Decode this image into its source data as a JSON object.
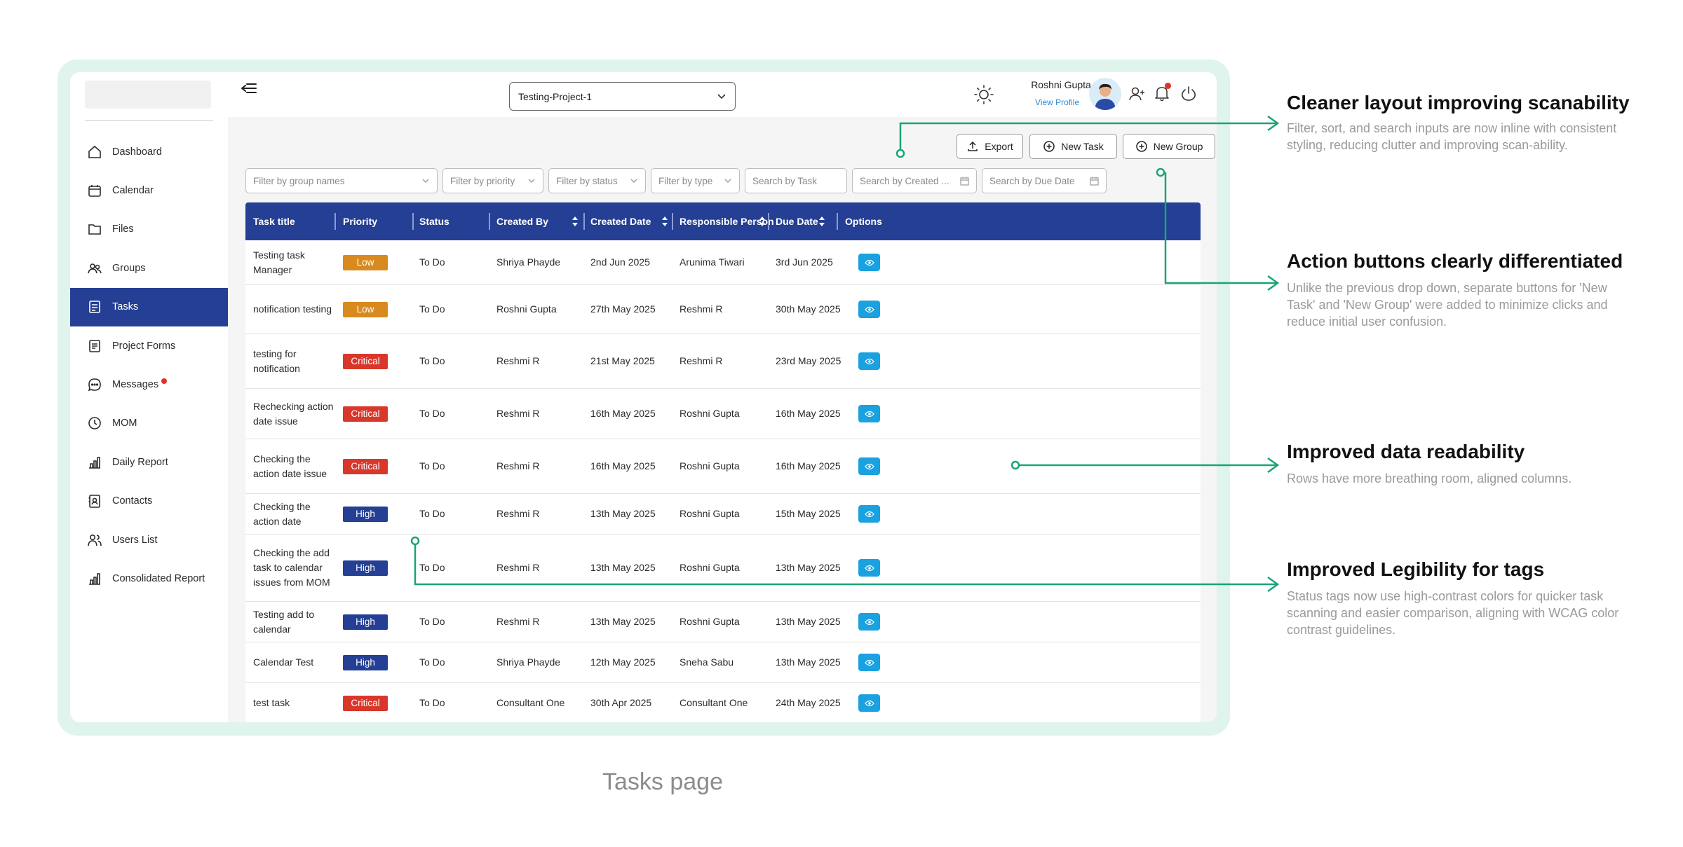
{
  "app": {
    "project": "Testing-Project-1",
    "user": {
      "name": "Roshni Gupta",
      "link": "View Profile"
    }
  },
  "sidebar": {
    "items": [
      {
        "label": "Dashboard",
        "icon": "home-icon"
      },
      {
        "label": "Calendar",
        "icon": "calendar-icon"
      },
      {
        "label": "Files",
        "icon": "folder-icon"
      },
      {
        "label": "Groups",
        "icon": "groups-icon"
      },
      {
        "label": "Tasks",
        "icon": "tasks-icon",
        "active": true
      },
      {
        "label": "Project Forms",
        "icon": "form-icon"
      },
      {
        "label": "Messages",
        "icon": "chat-icon",
        "badge": true
      },
      {
        "label": "MOM",
        "icon": "clock-icon"
      },
      {
        "label": "Daily Report",
        "icon": "bar-chart-icon"
      },
      {
        "label": "Contacts",
        "icon": "contacts-icon"
      },
      {
        "label": "Users List",
        "icon": "users-icon"
      },
      {
        "label": "Consolidated Report",
        "icon": "bar-chart-icon"
      }
    ]
  },
  "toolbar": {
    "export": "Export",
    "new_task": "New Task",
    "new_group": "New Group"
  },
  "filters": {
    "group": "Filter by group names",
    "priority": "Filter by priority",
    "status": "Filter by status",
    "type": "Filter by type",
    "task": "Search by Task",
    "created": "Search by Created ...",
    "due": "Search by Due Date"
  },
  "table": {
    "headers": [
      "Task title",
      "Priority",
      "Status",
      "Created By",
      "Created Date",
      "Responsible Person",
      "Due Date",
      "Options"
    ],
    "rows": [
      {
        "title": "Testing task Manager",
        "priority": "Low",
        "status": "To Do",
        "created_by": "Shriya Phayde",
        "created": "2nd Jun 2025",
        "responsible": "Arunima Tiwari",
        "due": "3rd Jun 2025"
      },
      {
        "title": "notification testing",
        "priority": "Low",
        "status": "To Do",
        "created_by": "Roshni Gupta",
        "created": "27th May 2025",
        "responsible": "Reshmi R",
        "due": "30th May 2025"
      },
      {
        "title": "testing for notification",
        "priority": "Critical",
        "status": "To Do",
        "created_by": "Reshmi R",
        "created": "21st May 2025",
        "responsible": "Reshmi R",
        "due": "23rd May 2025"
      },
      {
        "title": "Rechecking action date issue",
        "priority": "Critical",
        "status": "To Do",
        "created_by": "Reshmi R",
        "created": "16th May 2025",
        "responsible": "Roshni Gupta",
        "due": "16th May 2025"
      },
      {
        "title": "Checking the action date issue",
        "priority": "Critical",
        "status": "To Do",
        "created_by": "Reshmi R",
        "created": "16th May 2025",
        "responsible": "Roshni Gupta",
        "due": "16th May 2025"
      },
      {
        "title": "Checking the action date",
        "priority": "High",
        "status": "To Do",
        "created_by": "Reshmi R",
        "created": "13th May 2025",
        "responsible": "Roshni Gupta",
        "due": "15th May 2025"
      },
      {
        "title": "Checking the add task to calendar issues from MOM",
        "priority": "High",
        "status": "To Do",
        "created_by": "Reshmi R",
        "created": "13th May 2025",
        "responsible": "Roshni Gupta",
        "due": "13th May 2025"
      },
      {
        "title": "Testing add to calendar",
        "priority": "High",
        "status": "To Do",
        "created_by": "Reshmi R",
        "created": "13th May 2025",
        "responsible": "Roshni Gupta",
        "due": "13th May 2025"
      },
      {
        "title": "Calendar Test",
        "priority": "High",
        "status": "To Do",
        "created_by": "Shriya Phayde",
        "created": "12th May 2025",
        "responsible": "Sneha Sabu",
        "due": "13th May 2025"
      },
      {
        "title": "test task",
        "priority": "Critical",
        "status": "To Do",
        "created_by": "Consultant One",
        "created": "30th Apr 2025",
        "responsible": "Consultant One",
        "due": "24th May 2025"
      }
    ]
  },
  "colors": {
    "primary": "#243f93",
    "low": "#d98a1f",
    "critical": "#d9372a",
    "high": "#243f93",
    "eye": "#1aa1e0",
    "annotation": "#1aa37a"
  },
  "annotations": [
    {
      "title": "Cleaner layout improving scanability",
      "desc": "Filter, sort, and search inputs are now inline with consistent styling, reducing clutter and improving scan-ability."
    },
    {
      "title": "Action buttons clearly differentiated",
      "desc": "Unlike the previous drop down, separate buttons for 'New Task' and 'New Group' were added to minimize clicks and reduce initial user confusion."
    },
    {
      "title": "Improved data readability",
      "desc": "Rows have more breathing room, aligned columns."
    },
    {
      "title": "Improved Legibility for tags",
      "desc": "Status tags now use high-contrast colors for quicker task scanning and easier comparison, aligning with WCAG color contrast guidelines."
    }
  ],
  "caption": "Tasks page"
}
